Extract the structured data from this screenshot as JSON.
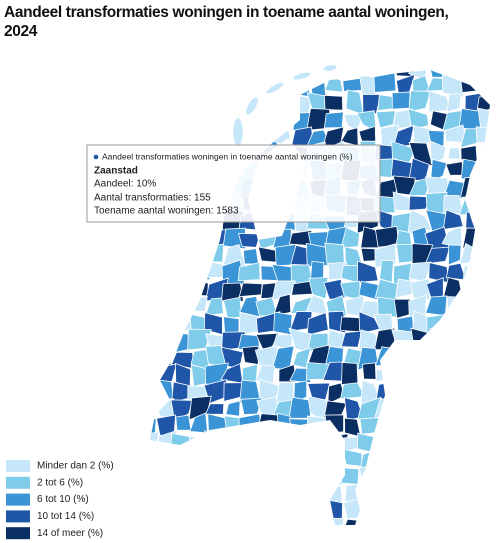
{
  "title_lines": [
    "Aandeel transformaties woningen in toename aantal woningen,",
    "2024"
  ],
  "tooltip": {
    "header": "Aandeel transformaties woningen in toename aantal woningen (%)",
    "dot_color": "#1f56a8",
    "name": "Zaanstad",
    "lines": [
      "Aandeel: 10%",
      "Aantal transformaties: 155",
      "Toename aantal woningen: 1583"
    ]
  },
  "legend": [
    {
      "label": "Minder dan 2 (%)",
      "color": "#c6e6f9"
    },
    {
      "label": "2 tot 6 (%)",
      "color": "#7ecbea"
    },
    {
      "label": "6 tot 10 (%)",
      "color": "#3b94d6"
    },
    {
      "label": "10 tot 14 (%)",
      "color": "#1f56a8"
    },
    {
      "label": "14 of meer (%)",
      "color": "#0c2f63"
    }
  ]
}
